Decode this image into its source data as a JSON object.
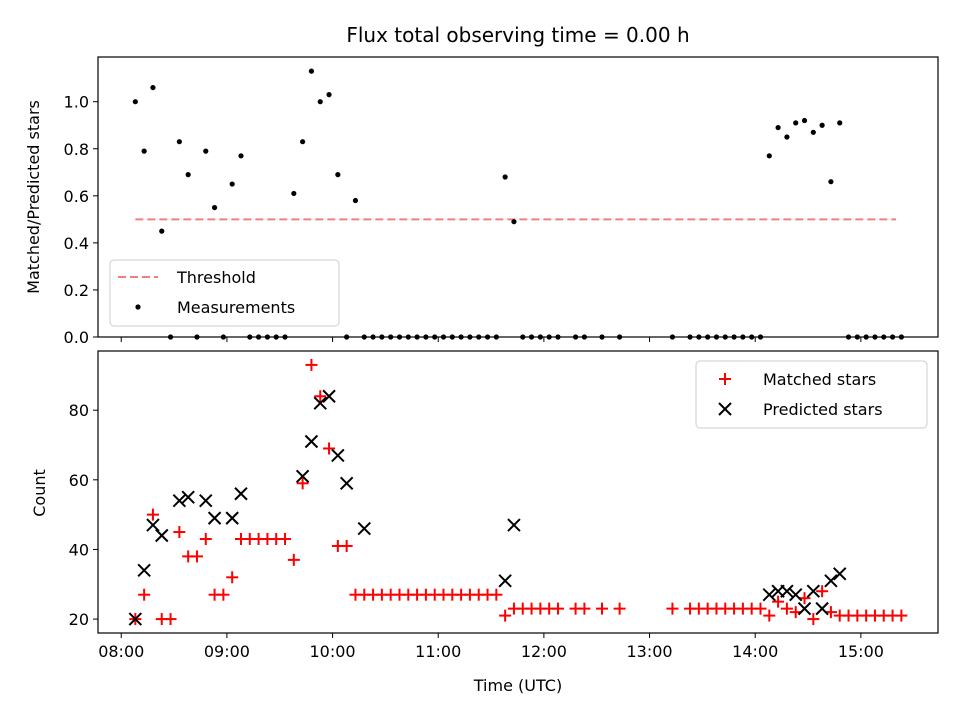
{
  "chart_data": [
    {
      "type": "scatter",
      "title": "Flux total observing time = 0.00 h",
      "xlabel": "",
      "ylabel": "Matched/Predicted stars",
      "ylim": [
        0,
        1.19
      ],
      "yticks": [
        0.0,
        0.2,
        0.4,
        0.6,
        0.8,
        1.0
      ],
      "ytick_labels": [
        "0.0",
        "0.2",
        "0.4",
        "0.6",
        "0.8",
        "1.0"
      ],
      "xlim_hours": [
        7.78,
        15.73
      ],
      "legend": {
        "placement": "lower-left",
        "entries": [
          "Threshold",
          "Measurements"
        ]
      },
      "threshold": {
        "name": "Threshold",
        "x_start": "08:08",
        "x_end": "15:20",
        "y": 0.5,
        "color": "#f08080",
        "style": "dashed"
      },
      "series": [
        {
          "name": "Measurements",
          "color": "#000000",
          "marker": "dot",
          "x": [
            "08:08",
            "08:13",
            "08:18",
            "08:23",
            "08:28",
            "08:33",
            "08:38",
            "08:43",
            "08:48",
            "08:53",
            "08:58",
            "09:03",
            "09:08",
            "09:13",
            "09:18",
            "09:23",
            "09:28",
            "09:33",
            "09:38",
            "09:43",
            "09:48",
            "09:53",
            "09:58",
            "10:03",
            "10:08",
            "10:13",
            "10:18",
            "10:23",
            "10:28",
            "10:33",
            "10:38",
            "10:43",
            "10:48",
            "10:53",
            "10:58",
            "11:03",
            "11:08",
            "11:13",
            "11:18",
            "11:23",
            "11:28",
            "11:33",
            "11:38",
            "11:43",
            "11:48",
            "11:53",
            "11:58",
            "12:03",
            "12:08",
            "12:18",
            "12:23",
            "12:33",
            "12:43",
            "13:13",
            "13:23",
            "13:28",
            "13:33",
            "13:38",
            "13:43",
            "13:48",
            "13:53",
            "13:58",
            "14:03",
            "14:08",
            "14:13",
            "14:18",
            "14:23",
            "14:28",
            "14:33",
            "14:38",
            "14:43",
            "14:48",
            "14:53",
            "14:58",
            "15:03",
            "15:08",
            "15:13",
            "15:18",
            "15:23"
          ],
          "y": [
            1.0,
            0.79,
            1.06,
            0.45,
            0.0,
            0.83,
            0.69,
            0.0,
            0.79,
            0.55,
            0.0,
            0.65,
            0.77,
            0.0,
            0.0,
            0.0,
            0.0,
            0.0,
            0.61,
            0.83,
            1.13,
            1.0,
            1.03,
            0.69,
            0.0,
            0.58,
            0.0,
            0.0,
            0.0,
            0.0,
            0.0,
            0.0,
            0.0,
            0.0,
            0.0,
            0.0,
            0.0,
            0.0,
            0.0,
            0.0,
            0.0,
            0.0,
            0.68,
            0.49,
            0.0,
            0.0,
            0.0,
            0.0,
            0.0,
            0.0,
            0.0,
            0.0,
            0.0,
            0.0,
            0.0,
            0.0,
            0.0,
            0.0,
            0.0,
            0.0,
            0.0,
            0.0,
            0.0,
            0.77,
            0.89,
            0.85,
            0.91,
            0.92,
            0.87,
            0.9,
            0.66,
            0.91,
            0.0,
            0.0,
            0.0,
            0.0,
            0.0,
            0.0,
            0.0
          ]
        }
      ]
    },
    {
      "type": "scatter",
      "title": "",
      "xlabel": "Time (UTC)",
      "ylabel": "Count",
      "ylim": [
        16,
        97
      ],
      "yticks": [
        20,
        40,
        60,
        80
      ],
      "ytick_labels": [
        "20",
        "40",
        "60",
        "80"
      ],
      "xlim_hours": [
        7.78,
        15.73
      ],
      "xticks": [
        "08:00",
        "09:00",
        "10:00",
        "11:00",
        "12:00",
        "13:00",
        "14:00",
        "15:00"
      ],
      "legend": {
        "placement": "upper-right",
        "entries": [
          "Matched stars",
          "Predicted stars"
        ]
      },
      "series": [
        {
          "name": "Matched stars",
          "color": "#ff0000",
          "marker": "plus",
          "x": [
            "08:08",
            "08:13",
            "08:18",
            "08:23",
            "08:28",
            "08:33",
            "08:38",
            "08:43",
            "08:48",
            "08:53",
            "08:58",
            "09:03",
            "09:08",
            "09:13",
            "09:18",
            "09:23",
            "09:28",
            "09:33",
            "09:38",
            "09:43",
            "09:48",
            "09:53",
            "09:58",
            "10:03",
            "10:08",
            "10:13",
            "10:18",
            "10:23",
            "10:28",
            "10:33",
            "10:38",
            "10:43",
            "10:48",
            "10:53",
            "10:58",
            "11:03",
            "11:08",
            "11:13",
            "11:18",
            "11:23",
            "11:28",
            "11:33",
            "11:38",
            "11:43",
            "11:48",
            "11:53",
            "11:58",
            "12:03",
            "12:08",
            "12:18",
            "12:23",
            "12:33",
            "12:43",
            "13:13",
            "13:23",
            "13:28",
            "13:33",
            "13:38",
            "13:43",
            "13:48",
            "13:53",
            "13:58",
            "14:03",
            "14:08",
            "14:13",
            "14:18",
            "14:23",
            "14:28",
            "14:33",
            "14:38",
            "14:43",
            "14:48",
            "14:53",
            "14:58",
            "15:03",
            "15:08",
            "15:13",
            "15:18",
            "15:23"
          ],
          "y": [
            20,
            27,
            50,
            20,
            20,
            45,
            38,
            38,
            43,
            27,
            27,
            32,
            43,
            43,
            43,
            43,
            43,
            43,
            37,
            59,
            93,
            84,
            69,
            41,
            41,
            27,
            27,
            27,
            27,
            27,
            27,
            27,
            27,
            27,
            27,
            27,
            27,
            27,
            27,
            27,
            27,
            27,
            21,
            23,
            23,
            23,
            23,
            23,
            23,
            23,
            23,
            23,
            23,
            23,
            23,
            23,
            23,
            23,
            23,
            23,
            23,
            23,
            23,
            21,
            25,
            23,
            22,
            26,
            20,
            28,
            22,
            21,
            21,
            21,
            21,
            21,
            21,
            21,
            21
          ]
        },
        {
          "name": "Predicted stars",
          "color": "#000000",
          "marker": "x",
          "x": [
            "08:08",
            "08:13",
            "08:18",
            "08:23",
            "08:33",
            "08:38",
            "08:48",
            "08:53",
            "09:03",
            "09:08",
            "09:43",
            "09:48",
            "09:53",
            "09:58",
            "10:03",
            "10:08",
            "10:18",
            "11:38",
            "11:43",
            "14:08",
            "14:13",
            "14:18",
            "14:23",
            "14:28",
            "14:33",
            "14:38",
            "14:43",
            "14:48"
          ],
          "y": [
            20,
            34,
            47,
            44,
            54,
            55,
            54,
            49,
            49,
            56,
            61,
            71,
            82,
            84,
            67,
            59,
            46,
            31,
            47,
            27,
            28,
            28,
            27,
            23,
            28,
            23,
            31,
            33
          ]
        }
      ]
    }
  ]
}
